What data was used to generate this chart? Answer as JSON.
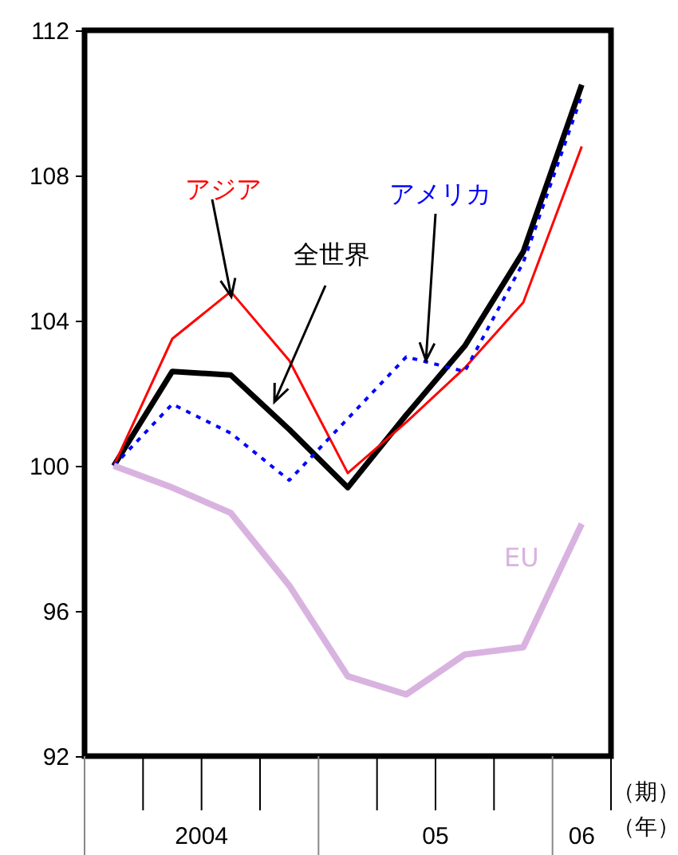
{
  "chart_data": {
    "type": "line",
    "categories": [
      null,
      null,
      null,
      null,
      null,
      null,
      null,
      null,
      null
    ],
    "ylim": [
      92,
      112
    ],
    "yticks": [
      92,
      96,
      100,
      104,
      108,
      112
    ],
    "grid": false,
    "legend": false,
    "marker": "none",
    "series": [
      {
        "name": "全世界",
        "color": "#000000",
        "line_style": "solid",
        "values": [
          100,
          102.6,
          102.5,
          101,
          99.4,
          101.4,
          103.3,
          105.9,
          110.5
        ]
      },
      {
        "name": "アジア",
        "color": "#ff0000",
        "line_style": "solid",
        "values": [
          100,
          103.5,
          104.8,
          102.9,
          99.8,
          101.2,
          102.7,
          104.5,
          108.8
        ]
      },
      {
        "name": "アメリカ",
        "color": "#0000ff",
        "line_style": "dotted",
        "values": [
          100,
          101.7,
          100.9,
          99.6,
          101.3,
          103,
          102.6,
          105.6,
          110.2
        ]
      },
      {
        "name": "EU",
        "color": "#d9b3e0",
        "line_style": "solid",
        "values": [
          100,
          99.4,
          98.7,
          96.7,
          94.2,
          93.7,
          94.8,
          95,
          98.4
        ]
      }
    ],
    "annotations": [
      "2004",
      "05",
      "06",
      "（期）",
      "（年）"
    ]
  }
}
